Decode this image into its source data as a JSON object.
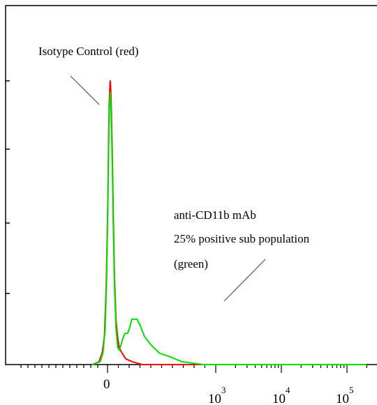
{
  "chart_data": {
    "type": "line",
    "title": "",
    "xlabel": "",
    "ylabel": "",
    "x_scale": "biexponential (linear near 0, log above)",
    "x_tick_labels": [
      {
        "value": 0,
        "base": "0",
        "exp": ""
      },
      {
        "value": 1000,
        "base": "10",
        "exp": "3"
      },
      {
        "value": 10000,
        "base": "10",
        "exp": "4"
      },
      {
        "value": 100000,
        "base": "10",
        "exp": "5"
      }
    ],
    "y_tick_labels": [],
    "grid": false,
    "series": [
      {
        "name": "Isotype Control (red)",
        "color": "#ff0000",
        "points": [
          [
            -100,
            0
          ],
          [
            -55,
            1
          ],
          [
            -35,
            4
          ],
          [
            -20,
            10
          ],
          [
            -8,
            28
          ],
          [
            2,
            55
          ],
          [
            10,
            80
          ],
          [
            16,
            92
          ],
          [
            22,
            98
          ],
          [
            26,
            100
          ],
          [
            31,
            96
          ],
          [
            37,
            88
          ],
          [
            45,
            72
          ],
          [
            55,
            50
          ],
          [
            65,
            30
          ],
          [
            78,
            16
          ],
          [
            92,
            10
          ],
          [
            108,
            6
          ],
          [
            135,
            4
          ],
          [
            170,
            2
          ],
          [
            230,
            1
          ],
          [
            320,
            0
          ],
          [
            560,
            0
          ],
          [
            3000,
            0
          ],
          [
            200000,
            0
          ]
        ]
      },
      {
        "name": "anti-CD11b mAb 25% positive sub population (green)",
        "color": "#00dd00",
        "points": [
          [
            -100,
            0
          ],
          [
            -48,
            1
          ],
          [
            -30,
            4
          ],
          [
            -16,
            12
          ],
          [
            -6,
            30
          ],
          [
            4,
            58
          ],
          [
            11,
            78
          ],
          [
            17,
            89
          ],
          [
            22,
            94
          ],
          [
            26,
            96
          ],
          [
            31,
            92
          ],
          [
            37,
            84
          ],
          [
            45,
            68
          ],
          [
            55,
            46
          ],
          [
            66,
            26
          ],
          [
            80,
            12
          ],
          [
            95,
            6
          ],
          [
            110,
            5
          ],
          [
            125,
            7
          ],
          [
            140,
            9
          ],
          [
            160,
            11
          ],
          [
            185,
            11
          ],
          [
            205,
            13
          ],
          [
            225,
            16
          ],
          [
            250,
            16
          ],
          [
            272,
            16
          ],
          [
            300,
            14
          ],
          [
            340,
            10
          ],
          [
            400,
            7
          ],
          [
            480,
            4
          ],
          [
            560,
            3
          ],
          [
            690,
            1
          ],
          [
            880,
            0
          ],
          [
            3000,
            0
          ],
          [
            200000,
            0
          ]
        ]
      }
    ],
    "annotations": [
      {
        "text": "Isotype Control (red)"
      },
      {
        "text": "anti-CD11b mAb"
      },
      {
        "text": "25% positive sub population"
      },
      {
        "text": "(green)"
      }
    ]
  }
}
